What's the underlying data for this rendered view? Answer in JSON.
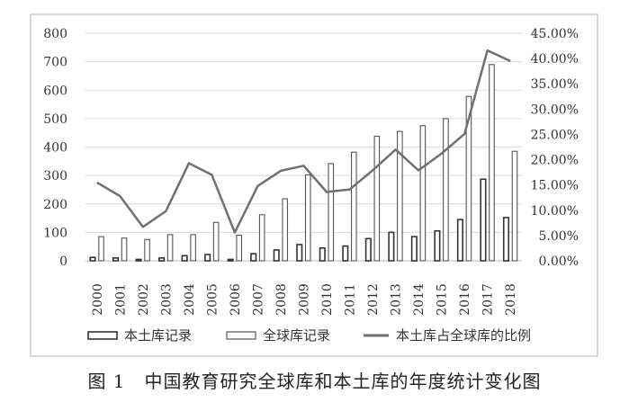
{
  "chart_data": {
    "type": "bar",
    "categories": [
      "2000",
      "2001",
      "2002",
      "2003",
      "2004",
      "2005",
      "2006",
      "2007",
      "2008",
      "2009",
      "2010",
      "2011",
      "2012",
      "2013",
      "2014",
      "2015",
      "2016",
      "2017",
      "2018"
    ],
    "series": [
      {
        "name": "本土库记录",
        "type": "bar",
        "axis": "left",
        "values": [
          12,
          10,
          5,
          10,
          18,
          22,
          5,
          25,
          38,
          57,
          45,
          52,
          78,
          100,
          85,
          105,
          145,
          287,
          152
        ]
      },
      {
        "name": "全球库记录",
        "type": "bar",
        "axis": "left",
        "values": [
          85,
          80,
          75,
          92,
          92,
          135,
          90,
          162,
          218,
          302,
          342,
          382,
          438,
          455,
          475,
          500,
          578,
          690,
          385
        ]
      },
      {
        "name": "本土库占全球库的比例",
        "type": "line",
        "axis": "right",
        "values": [
          15.5,
          12.8,
          6.7,
          9.8,
          19.3,
          17.0,
          5.6,
          14.8,
          17.8,
          18.8,
          13.6,
          14.1,
          17.9,
          22.0,
          17.9,
          21.2,
          25.1,
          41.6,
          39.5
        ]
      }
    ],
    "left_axis": {
      "ylim": [
        0,
        800
      ],
      "ticks": [
        "0",
        "100",
        "200",
        "300",
        "400",
        "500",
        "600",
        "700",
        "800"
      ]
    },
    "right_axis": {
      "ylim": [
        0,
        45
      ],
      "ticks": [
        "0.00%",
        "5.00%",
        "10.00%",
        "15.00%",
        "20.00%",
        "25.00%",
        "30.00%",
        "35.00%",
        "40.00%",
        "45.00%"
      ]
    },
    "grid": "horizontal",
    "legend_position": "bottom",
    "colors": {
      "bar_local": "#ffffff",
      "bar_global": "#ffffff",
      "bar_stroke": "#333333",
      "line": "#707070",
      "grid": "#d9d9d9",
      "frame": "#bfbfbf"
    }
  },
  "legend": {
    "local_label": "本土库记录",
    "global_label": "全球库记录",
    "ratio_label": "本土库占全球库的比例"
  },
  "caption": "图 1　中国教育研究全球库和本土库的年度统计变化图"
}
